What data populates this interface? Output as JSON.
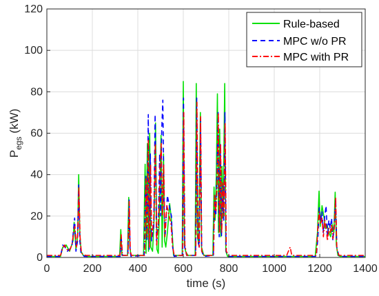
{
  "chart_data": {
    "type": "line",
    "xlabel": "time (s)",
    "ylabel_main": "P",
    "ylabel_sub": "egs",
    "ylabel_unit": " (kW)",
    "xlim": [
      0,
      1400
    ],
    "ylim": [
      0,
      120
    ],
    "x_ticks": [
      0,
      200,
      400,
      600,
      800,
      1000,
      1200,
      1400
    ],
    "y_ticks": [
      0,
      20,
      40,
      60,
      80,
      100,
      120
    ],
    "grid": true,
    "legend_position": "top-right",
    "series": [
      {
        "name": "Rule-based",
        "color": "#00e000",
        "dash": "solid",
        "points": [
          [
            0,
            0.5
          ],
          [
            60,
            0.5
          ],
          [
            70,
            5
          ],
          [
            85,
            6
          ],
          [
            100,
            3
          ],
          [
            115,
            8
          ],
          [
            120,
            17
          ],
          [
            128,
            4
          ],
          [
            135,
            10
          ],
          [
            140,
            40
          ],
          [
            145,
            12
          ],
          [
            150,
            3
          ],
          [
            160,
            1
          ],
          [
            175,
            0.5
          ],
          [
            320,
            0.5
          ],
          [
            325,
            13.5
          ],
          [
            330,
            1
          ],
          [
            355,
            1
          ],
          [
            360,
            29
          ],
          [
            365,
            5
          ],
          [
            370,
            1
          ],
          [
            425,
            1
          ],
          [
            432,
            45
          ],
          [
            436,
            2
          ],
          [
            442,
            55
          ],
          [
            447,
            3
          ],
          [
            452,
            60
          ],
          [
            457,
            5
          ],
          [
            465,
            3
          ],
          [
            472,
            20
          ],
          [
            478,
            65
          ],
          [
            484,
            4
          ],
          [
            490,
            2
          ],
          [
            497,
            30
          ],
          [
            502,
            59
          ],
          [
            507,
            5
          ],
          [
            513,
            50
          ],
          [
            518,
            8
          ],
          [
            523,
            5
          ],
          [
            530,
            12
          ],
          [
            540,
            26
          ],
          [
            547,
            19
          ],
          [
            552,
            10
          ],
          [
            557,
            1
          ],
          [
            595,
            1
          ],
          [
            600,
            85
          ],
          [
            605,
            6
          ],
          [
            610,
            3
          ],
          [
            620,
            1
          ],
          [
            652,
            1
          ],
          [
            657,
            84
          ],
          [
            662,
            10
          ],
          [
            668,
            6
          ],
          [
            675,
            70
          ],
          [
            680,
            5
          ],
          [
            690,
            1
          ],
          [
            730,
            1
          ],
          [
            735,
            34
          ],
          [
            740,
            18
          ],
          [
            745,
            40
          ],
          [
            750,
            79
          ],
          [
            755,
            12
          ],
          [
            760,
            62
          ],
          [
            765,
            10
          ],
          [
            770,
            44
          ],
          [
            775,
            19
          ],
          [
            782,
            84
          ],
          [
            787,
            3
          ],
          [
            795,
            0.5
          ],
          [
            1180,
            0.5
          ],
          [
            1190,
            12
          ],
          [
            1197,
            32
          ],
          [
            1202,
            15
          ],
          [
            1210,
            25
          ],
          [
            1218,
            20
          ],
          [
            1225,
            14
          ],
          [
            1232,
            16
          ],
          [
            1240,
            12
          ],
          [
            1248,
            10
          ],
          [
            1255,
            16
          ],
          [
            1262,
            12
          ],
          [
            1268,
            31.5
          ],
          [
            1273,
            6
          ],
          [
            1280,
            1
          ],
          [
            1290,
            0.5
          ],
          [
            1400,
            0.5
          ]
        ]
      },
      {
        "name": "MPC w/o PR",
        "color": "#0000ff",
        "dash": "dashed",
        "points": [
          [
            0,
            0.5
          ],
          [
            60,
            0.5
          ],
          [
            70,
            6
          ],
          [
            80,
            5
          ],
          [
            90,
            3
          ],
          [
            100,
            4
          ],
          [
            110,
            5
          ],
          [
            118,
            14
          ],
          [
            122,
            19
          ],
          [
            128,
            3
          ],
          [
            135,
            8
          ],
          [
            140,
            35
          ],
          [
            145,
            8
          ],
          [
            150,
            2
          ],
          [
            165,
            0.5
          ],
          [
            322,
            0.5
          ],
          [
            327,
            10
          ],
          [
            332,
            1
          ],
          [
            356,
            1
          ],
          [
            362,
            28
          ],
          [
            366,
            3
          ],
          [
            370,
            0.5
          ],
          [
            428,
            1
          ],
          [
            435,
            40
          ],
          [
            440,
            8
          ],
          [
            446,
            69
          ],
          [
            450,
            4
          ],
          [
            455,
            50
          ],
          [
            460,
            8
          ],
          [
            470,
            15
          ],
          [
            476,
            69
          ],
          [
            482,
            8
          ],
          [
            490,
            15
          ],
          [
            496,
            50
          ],
          [
            500,
            20
          ],
          [
            505,
            62
          ],
          [
            510,
            76
          ],
          [
            515,
            25
          ],
          [
            520,
            10
          ],
          [
            530,
            30
          ],
          [
            540,
            24
          ],
          [
            548,
            20
          ],
          [
            553,
            5
          ],
          [
            560,
            0.5
          ],
          [
            596,
            1
          ],
          [
            601,
            77
          ],
          [
            606,
            5
          ],
          [
            615,
            1
          ],
          [
            654,
            1
          ],
          [
            659,
            77
          ],
          [
            664,
            8
          ],
          [
            670,
            5
          ],
          [
            676,
            67
          ],
          [
            681,
            3
          ],
          [
            690,
            0.5
          ],
          [
            732,
            1
          ],
          [
            738,
            30
          ],
          [
            743,
            20
          ],
          [
            748,
            40
          ],
          [
            753,
            70
          ],
          [
            758,
            10
          ],
          [
            763,
            55
          ],
          [
            768,
            10
          ],
          [
            773,
            35
          ],
          [
            778,
            18
          ],
          [
            783,
            70
          ],
          [
            788,
            3
          ],
          [
            800,
            0.5
          ],
          [
            1185,
            0.5
          ],
          [
            1192,
            10
          ],
          [
            1198,
            24
          ],
          [
            1204,
            18
          ],
          [
            1210,
            22
          ],
          [
            1216,
            12
          ],
          [
            1222,
            20
          ],
          [
            1228,
            25
          ],
          [
            1234,
            10
          ],
          [
            1240,
            18
          ],
          [
            1246,
            14
          ],
          [
            1252,
            19
          ],
          [
            1258,
            8
          ],
          [
            1264,
            16
          ],
          [
            1270,
            28
          ],
          [
            1275,
            5
          ],
          [
            1285,
            0.5
          ],
          [
            1400,
            0.5
          ]
        ]
      },
      {
        "name": "MPC with PR",
        "color": "#ff0000",
        "dash": "dashdot",
        "points": [
          [
            0,
            1
          ],
          [
            60,
            1
          ],
          [
            68,
            4
          ],
          [
            78,
            6
          ],
          [
            88,
            4
          ],
          [
            98,
            3
          ],
          [
            110,
            6
          ],
          [
            118,
            12
          ],
          [
            123,
            15
          ],
          [
            130,
            5
          ],
          [
            136,
            12
          ],
          [
            141,
            34
          ],
          [
            146,
            10
          ],
          [
            152,
            2
          ],
          [
            170,
            1
          ],
          [
            322,
            1
          ],
          [
            327,
            11
          ],
          [
            332,
            1
          ],
          [
            357,
            1
          ],
          [
            362,
            27
          ],
          [
            367,
            3
          ],
          [
            372,
            1
          ],
          [
            430,
            1
          ],
          [
            436,
            38
          ],
          [
            441,
            10
          ],
          [
            446,
            57
          ],
          [
            451,
            5
          ],
          [
            456,
            45
          ],
          [
            461,
            10
          ],
          [
            470,
            18
          ],
          [
            477,
            55
          ],
          [
            483,
            6
          ],
          [
            492,
            20
          ],
          [
            498,
            45
          ],
          [
            503,
            55
          ],
          [
            508,
            20
          ],
          [
            514,
            45
          ],
          [
            519,
            10
          ],
          [
            528,
            25
          ],
          [
            538,
            20
          ],
          [
            546,
            16
          ],
          [
            552,
            6
          ],
          [
            560,
            1
          ],
          [
            597,
            1
          ],
          [
            602,
            70
          ],
          [
            607,
            6
          ],
          [
            615,
            1
          ],
          [
            655,
            1
          ],
          [
            660,
            75
          ],
          [
            665,
            10
          ],
          [
            670,
            5
          ],
          [
            676,
            68
          ],
          [
            681,
            3
          ],
          [
            692,
            1
          ],
          [
            733,
            1
          ],
          [
            738,
            30
          ],
          [
            744,
            22
          ],
          [
            749,
            38
          ],
          [
            754,
            70
          ],
          [
            759,
            12
          ],
          [
            764,
            55
          ],
          [
            769,
            12
          ],
          [
            774,
            36
          ],
          [
            779,
            20
          ],
          [
            784,
            65
          ],
          [
            789,
            3
          ],
          [
            800,
            1
          ],
          [
            1055,
            1
          ],
          [
            1062,
            3
          ],
          [
            1070,
            5
          ],
          [
            1077,
            1
          ],
          [
            1185,
            1
          ],
          [
            1192,
            15
          ],
          [
            1198,
            22
          ],
          [
            1204,
            16
          ],
          [
            1210,
            19
          ],
          [
            1216,
            10
          ],
          [
            1222,
            18
          ],
          [
            1228,
            15
          ],
          [
            1234,
            8
          ],
          [
            1240,
            14
          ],
          [
            1246,
            12
          ],
          [
            1252,
            16
          ],
          [
            1258,
            9
          ],
          [
            1264,
            14
          ],
          [
            1270,
            29
          ],
          [
            1275,
            4
          ],
          [
            1285,
            1
          ],
          [
            1400,
            1
          ]
        ]
      }
    ]
  }
}
